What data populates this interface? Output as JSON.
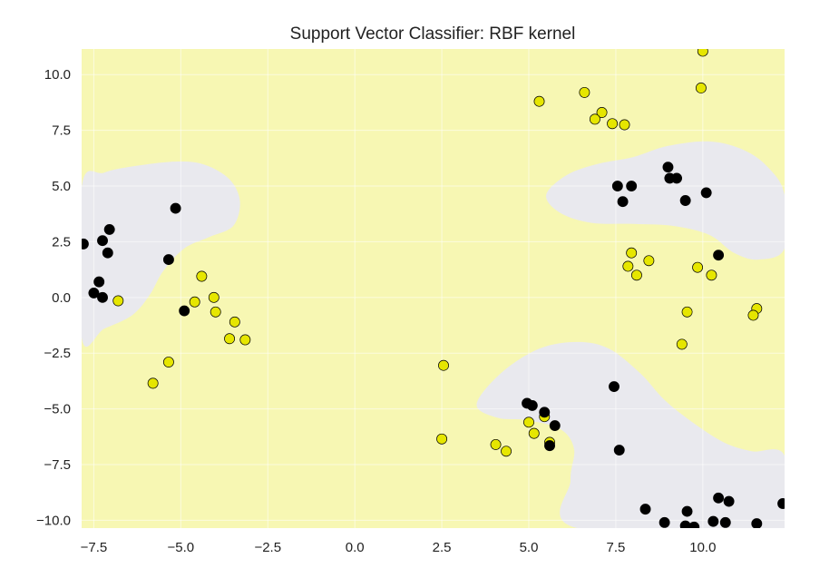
{
  "chart_data": {
    "type": "scatter",
    "title": "Support Vector Classifier: RBF kernel",
    "xlabel": "",
    "ylabel": "",
    "xlim": [
      -7.85,
      12.35
    ],
    "ylim": [
      -10.35,
      11.15
    ],
    "x_ticks": [
      {
        "value": -7.5,
        "label": "−7.5"
      },
      {
        "value": -5.0,
        "label": "−5.0"
      },
      {
        "value": -2.5,
        "label": "−2.5"
      },
      {
        "value": 0.0,
        "label": "0.0"
      },
      {
        "value": 2.5,
        "label": "2.5"
      },
      {
        "value": 5.0,
        "label": "5.0"
      },
      {
        "value": 7.5,
        "label": "7.5"
      },
      {
        "value": 10.0,
        "label": "10.0"
      }
    ],
    "y_ticks": [
      {
        "value": 10.0,
        "label": "10.0"
      },
      {
        "value": 7.5,
        "label": "7.5"
      },
      {
        "value": 5.0,
        "label": "5.0"
      },
      {
        "value": 2.5,
        "label": "2.5"
      },
      {
        "value": 0.0,
        "label": "0.0"
      },
      {
        "value": -2.5,
        "label": "−2.5"
      },
      {
        "value": -5.0,
        "label": "−5.0"
      },
      {
        "value": -7.5,
        "label": "−7.5"
      },
      {
        "value": -10.0,
        "label": "−10.0"
      }
    ],
    "grid": true,
    "colors": {
      "class_0_region": "#f7f7b3",
      "class_1_region": "#e9e9ee",
      "class_0_point": "#e6e600",
      "class_1_point": "#000000",
      "grid": "#ffffff"
    },
    "decision_regions": [
      {
        "class": 1,
        "name": "left",
        "boundary": [
          [
            -7.85,
            4.95
          ],
          [
            -7.2,
            5.6
          ],
          [
            -6.3,
            5.9
          ],
          [
            -5.1,
            6.1
          ],
          [
            -4.3,
            5.95
          ],
          [
            -3.6,
            5.3
          ],
          [
            -3.3,
            4.3
          ],
          [
            -3.5,
            3.2
          ],
          [
            -4.2,
            2.7
          ],
          [
            -4.9,
            2.2
          ],
          [
            -5.5,
            1.2
          ],
          [
            -5.9,
            0.1
          ],
          [
            -6.4,
            -0.8
          ],
          [
            -7.2,
            -1.4
          ],
          [
            -7.85,
            -1.8
          ]
        ]
      },
      {
        "class": 1,
        "name": "top-right",
        "boundary": [
          [
            5.5,
            4.6
          ],
          [
            6.1,
            5.5
          ],
          [
            7.0,
            6.0
          ],
          [
            8.0,
            6.3
          ],
          [
            9.0,
            6.8
          ],
          [
            10.2,
            7.0
          ],
          [
            11.2,
            6.6
          ],
          [
            11.9,
            5.8
          ],
          [
            12.35,
            4.6
          ],
          [
            12.35,
            2.2
          ],
          [
            11.6,
            1.7
          ],
          [
            10.9,
            2.0
          ],
          [
            10.2,
            2.8
          ],
          [
            9.2,
            3.2
          ],
          [
            8.0,
            3.3
          ],
          [
            6.8,
            3.35
          ],
          [
            5.9,
            3.8
          ]
        ]
      },
      {
        "class": 1,
        "name": "bottom-right",
        "boundary": [
          [
            3.5,
            -4.8
          ],
          [
            4.2,
            -3.4
          ],
          [
            5.3,
            -2.3
          ],
          [
            6.4,
            -2.0
          ],
          [
            7.3,
            -2.3
          ],
          [
            8.2,
            -3.4
          ],
          [
            8.9,
            -4.6
          ],
          [
            9.7,
            -5.6
          ],
          [
            10.6,
            -6.5
          ],
          [
            11.4,
            -6.9
          ],
          [
            12.35,
            -7.1
          ],
          [
            12.35,
            -10.35
          ],
          [
            6.4,
            -10.35
          ],
          [
            6.2,
            -8.2
          ],
          [
            6.3,
            -6.8
          ],
          [
            5.9,
            -5.9
          ],
          [
            4.9,
            -5.5
          ],
          [
            4.1,
            -5.4
          ]
        ]
      }
    ],
    "series": [
      {
        "class": 0,
        "points": [
          [
            5.3,
            8.8
          ],
          [
            6.6,
            9.2
          ],
          [
            7.1,
            8.3
          ],
          [
            6.9,
            8.0
          ],
          [
            7.4,
            7.8
          ],
          [
            7.75,
            7.75
          ],
          [
            10.0,
            11.05
          ],
          [
            9.95,
            9.4
          ],
          [
            7.95,
            2.0
          ],
          [
            8.45,
            1.65
          ],
          [
            7.85,
            1.4
          ],
          [
            8.1,
            1.0
          ],
          [
            9.85,
            1.35
          ],
          [
            10.25,
            1.0
          ],
          [
            11.55,
            -0.5
          ],
          [
            11.45,
            -0.8
          ],
          [
            9.55,
            -0.65
          ],
          [
            9.4,
            -2.1
          ],
          [
            2.55,
            -3.05
          ],
          [
            2.5,
            -6.35
          ],
          [
            4.05,
            -6.6
          ],
          [
            4.35,
            -6.9
          ],
          [
            5.0,
            -5.6
          ],
          [
            5.15,
            -6.1
          ],
          [
            5.45,
            -5.35
          ],
          [
            5.6,
            -6.5
          ],
          [
            -6.8,
            -0.15
          ],
          [
            -4.4,
            0.95
          ],
          [
            -4.6,
            -0.2
          ],
          [
            -4.05,
            0.0
          ],
          [
            -4.0,
            -0.65
          ],
          [
            -3.45,
            -1.1
          ],
          [
            -3.6,
            -1.85
          ],
          [
            -3.15,
            -1.9
          ],
          [
            -5.35,
            -2.9
          ],
          [
            -5.8,
            -3.85
          ]
        ]
      },
      {
        "class": 1,
        "points": [
          [
            -7.8,
            2.4
          ],
          [
            -7.05,
            3.05
          ],
          [
            -7.25,
            2.55
          ],
          [
            -7.1,
            2.0
          ],
          [
            -7.35,
            0.7
          ],
          [
            -7.5,
            0.2
          ],
          [
            -7.25,
            0.0
          ],
          [
            -5.15,
            4.0
          ],
          [
            -5.35,
            1.7
          ],
          [
            -4.9,
            -0.6
          ],
          [
            7.55,
            5.0
          ],
          [
            7.95,
            5.0
          ],
          [
            7.7,
            4.3
          ],
          [
            9.0,
            5.85
          ],
          [
            9.05,
            5.35
          ],
          [
            9.25,
            5.35
          ],
          [
            9.5,
            4.35
          ],
          [
            10.1,
            4.7
          ],
          [
            10.45,
            1.9
          ],
          [
            4.95,
            -4.75
          ],
          [
            5.1,
            -4.85
          ],
          [
            5.45,
            -5.15
          ],
          [
            5.75,
            -5.75
          ],
          [
            5.6,
            -6.65
          ],
          [
            7.45,
            -4.0
          ],
          [
            7.6,
            -6.85
          ],
          [
            8.35,
            -9.5
          ],
          [
            8.9,
            -10.1
          ],
          [
            9.55,
            -9.6
          ],
          [
            9.5,
            -10.25
          ],
          [
            9.75,
            -10.3
          ],
          [
            10.3,
            -10.05
          ],
          [
            10.65,
            -10.1
          ],
          [
            10.45,
            -9.0
          ],
          [
            10.75,
            -9.15
          ],
          [
            11.55,
            -10.15
          ],
          [
            12.3,
            -9.25
          ]
        ]
      }
    ]
  }
}
